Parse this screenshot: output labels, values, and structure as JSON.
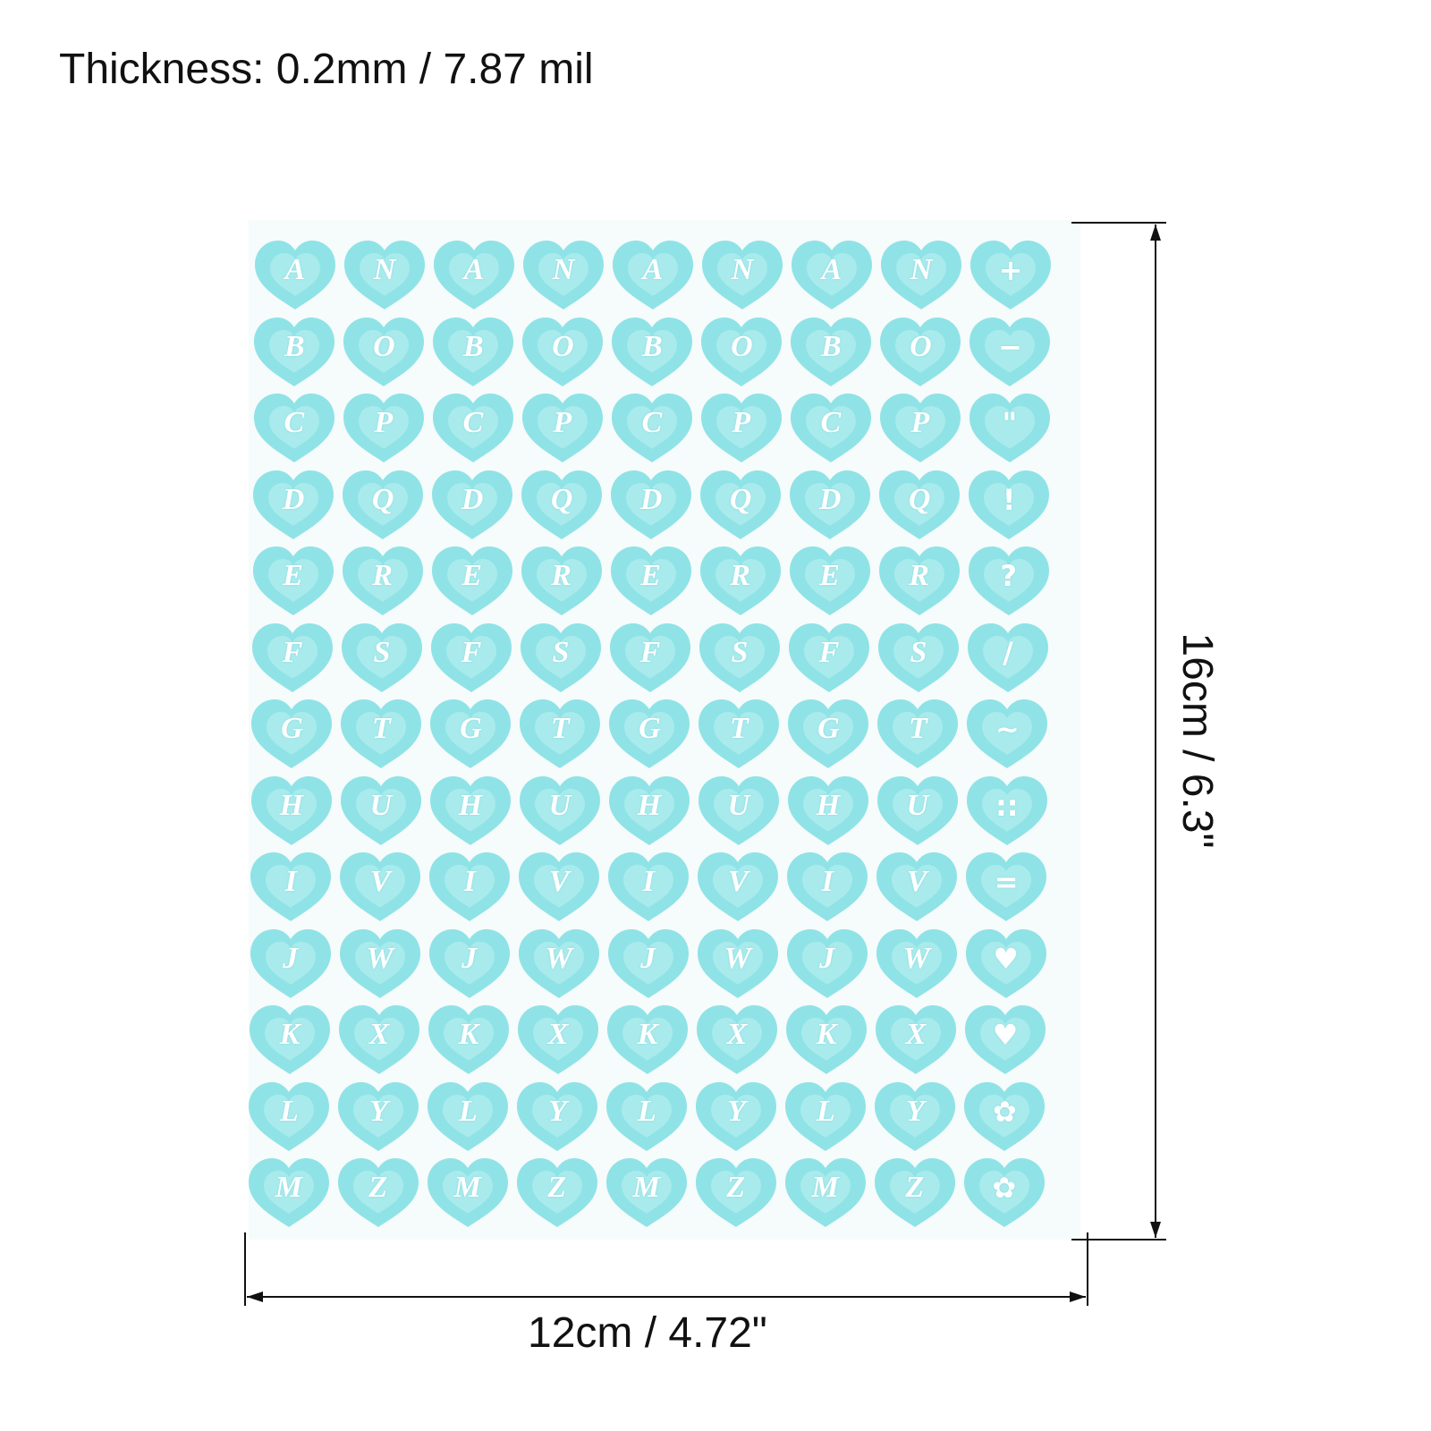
{
  "header": {
    "thickness": "Thickness: 0.2mm / 7.87 mil"
  },
  "dimensions": {
    "width_label": "12cm / 4.72\"",
    "height_label": "16cm / 6.3\""
  },
  "sheet": {
    "sticker_color": "#8fe3e6",
    "sticker_inner_color": "#b4eef0",
    "glyph_color": "#ffffff",
    "rows": [
      [
        "A",
        "N",
        "A",
        "N",
        "A",
        "N",
        "A",
        "N",
        "+"
      ],
      [
        "B",
        "O",
        "B",
        "O",
        "B",
        "O",
        "B",
        "O",
        "−"
      ],
      [
        "C",
        "P",
        "C",
        "P",
        "C",
        "P",
        "C",
        "P",
        "\""
      ],
      [
        "D",
        "Q",
        "D",
        "Q",
        "D",
        "Q",
        "D",
        "Q",
        "!"
      ],
      [
        "E",
        "R",
        "E",
        "R",
        "E",
        "R",
        "E",
        "R",
        "?"
      ],
      [
        "F",
        "S",
        "F",
        "S",
        "F",
        "S",
        "F",
        "S",
        "/"
      ],
      [
        "G",
        "T",
        "G",
        "T",
        "G",
        "T",
        "G",
        "T",
        "~"
      ],
      [
        "H",
        "U",
        "H",
        "U",
        "H",
        "U",
        "H",
        "U",
        "::"
      ],
      [
        "I",
        "V",
        "I",
        "V",
        "I",
        "V",
        "I",
        "V",
        "="
      ],
      [
        "J",
        "W",
        "J",
        "W",
        "J",
        "W",
        "J",
        "W",
        "♥"
      ],
      [
        "K",
        "X",
        "K",
        "X",
        "K",
        "X",
        "K",
        "X",
        "♥"
      ],
      [
        "L",
        "Y",
        "L",
        "Y",
        "L",
        "Y",
        "L",
        "Y",
        "✿"
      ],
      [
        "M",
        "Z",
        "M",
        "Z",
        "M",
        "Z",
        "M",
        "Z",
        "✿"
      ]
    ]
  }
}
